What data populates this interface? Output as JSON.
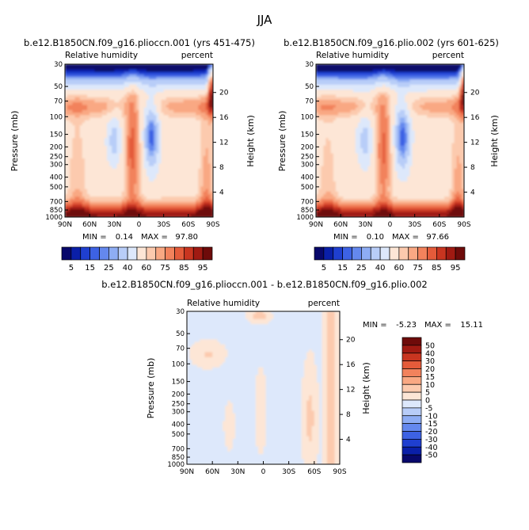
{
  "page": {
    "title": "JJA"
  },
  "chart_data": [
    {
      "type": "heatmap",
      "title": "b.e12.B1850CN.f09_g16.plioccn.001 (yrs 451-475)",
      "left_label": "Relative humidity",
      "right_label": "percent",
      "ylabel": "Pressure (mb)",
      "ylabel_right": "Height (km)",
      "x_ticks": [
        "90N",
        "60N",
        "30N",
        "0",
        "30S",
        "60S",
        "90S"
      ],
      "y_ticks": [
        "30",
        "50",
        "70",
        "100",
        "150",
        "200",
        "250",
        "300",
        "400",
        "500",
        "700",
        "850",
        "1000"
      ],
      "y_right_ticks": [
        "20",
        "16",
        "12",
        "8",
        "4"
      ],
      "min_label": "MIN =",
      "min_value": "0.14",
      "max_label": "MAX =",
      "max_value": "97.80",
      "colorbar_ticks": [
        "5",
        "15",
        "25",
        "40",
        "60",
        "75",
        "85",
        "95"
      ]
    },
    {
      "type": "heatmap",
      "title": "b.e12.B1850CN.f09_g16.plio.002 (yrs 601-625)",
      "left_label": "Relative humidity",
      "right_label": "percent",
      "ylabel": "Pressure (mb)",
      "ylabel_right": "Height (km)",
      "x_ticks": [
        "90N",
        "60N",
        "30N",
        "0",
        "30S",
        "60S",
        "90S"
      ],
      "y_ticks": [
        "30",
        "50",
        "70",
        "100",
        "150",
        "200",
        "250",
        "300",
        "400",
        "500",
        "700",
        "850",
        "1000"
      ],
      "y_right_ticks": [
        "20",
        "16",
        "12",
        "8",
        "4"
      ],
      "min_label": "MIN =",
      "min_value": "0.10",
      "max_label": "MAX =",
      "max_value": "97.66",
      "colorbar_ticks": [
        "5",
        "15",
        "25",
        "40",
        "60",
        "75",
        "85",
        "95"
      ]
    },
    {
      "type": "heatmap",
      "title": "b.e12.B1850CN.f09_g16.plioccn.001 - b.e12.B1850CN.f09_g16.plio.002",
      "left_label": "Relative humidity",
      "right_label": "percent",
      "ylabel": "Pressure (mb)",
      "ylabel_right": "Height (km)",
      "x_ticks": [
        "90N",
        "60N",
        "30N",
        "0",
        "30S",
        "60S",
        "90S"
      ],
      "y_ticks": [
        "30",
        "50",
        "70",
        "100",
        "150",
        "200",
        "250",
        "300",
        "400",
        "500",
        "700",
        "850",
        "1000"
      ],
      "y_right_ticks": [
        "20",
        "16",
        "12",
        "8",
        "4"
      ],
      "min_label": "MIN =",
      "min_value": "-5.23",
      "max_label": "MAX =",
      "max_value": "15.11",
      "colorbar_ticks": [
        "50",
        "40",
        "30",
        "20",
        "15",
        "10",
        "5",
        "0",
        "-5",
        "-10",
        "-15",
        "-20",
        "-30",
        "-40",
        "-50"
      ]
    }
  ],
  "colors": {
    "rh_scale": [
      "#08086b",
      "#0a1fa8",
      "#1f3fd0",
      "#3d62e4",
      "#6488ee",
      "#8eadf4",
      "#b8cdf8",
      "#dde8fb",
      "#fde6d6",
      "#fccaae",
      "#f9a883",
      "#f2825c",
      "#e45b3a",
      "#c93520",
      "#a01a12",
      "#6e0b0a"
    ],
    "diff_scale": [
      "#08086b",
      "#0a1fa8",
      "#1f3fd0",
      "#3d62e4",
      "#6488ee",
      "#8eadf4",
      "#b8cdf8",
      "#dde8fb",
      "#fde6d6",
      "#fccaae",
      "#f9a883",
      "#f2825c",
      "#e45b3a",
      "#c93520",
      "#a01a12",
      "#6e0b0a"
    ]
  }
}
